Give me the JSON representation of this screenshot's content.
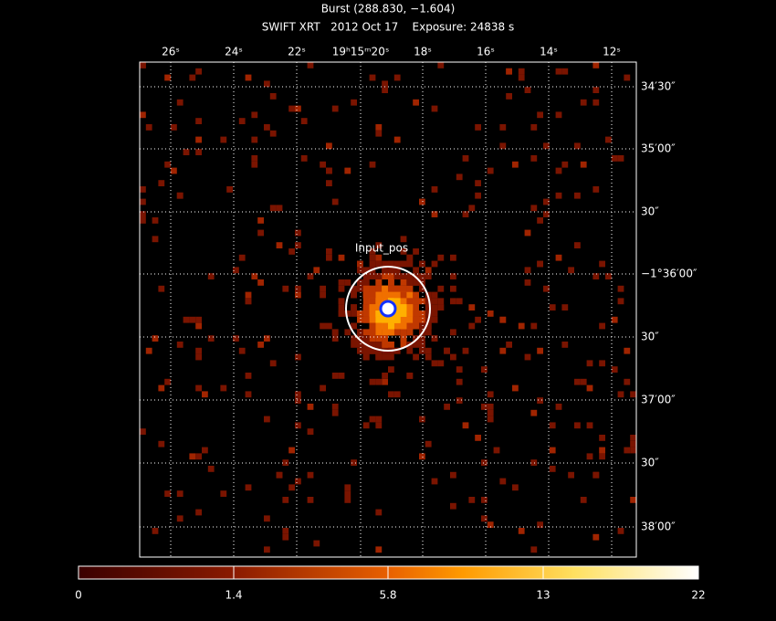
{
  "header": {
    "title": "Burst (288.830, −1.604)",
    "subtitle": "SWIFT XRT   2012 Oct 17    Exposure: 24838 s"
  },
  "top_axis": {
    "labels": [
      "26ˢ",
      "24ˢ",
      "22ˢ",
      "19ʰ15ᵐ20ˢ",
      "18ˢ",
      "16ˢ",
      "14ˢ",
      "12ˢ"
    ]
  },
  "right_axis": {
    "labels": [
      "34′30″",
      "35′00″",
      "30″",
      "−1°36′00″",
      "30″",
      "37′00″",
      "30″",
      "38′00″"
    ]
  },
  "region": {
    "label": "Input_pos"
  },
  "colorbar": {
    "labels": [
      "0",
      "1.4",
      "5.8",
      "13",
      "22"
    ]
  }
}
